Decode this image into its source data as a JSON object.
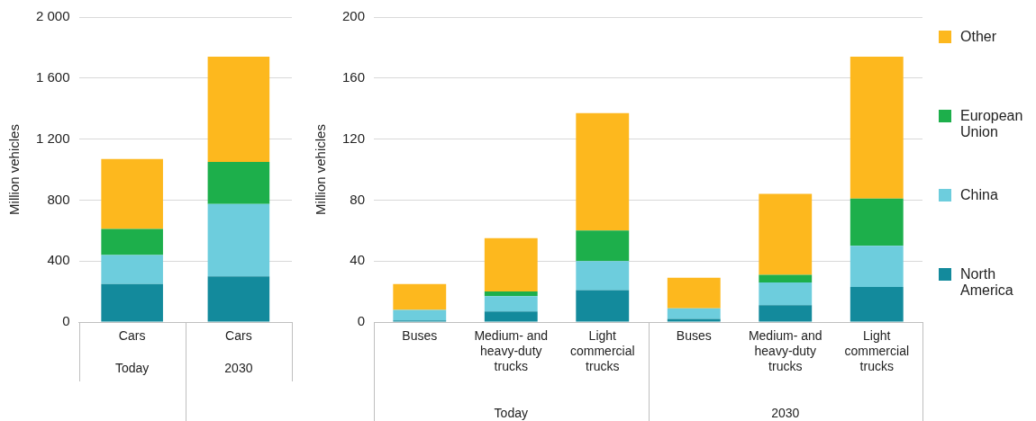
{
  "chart_data": [
    {
      "type": "bar",
      "ylabel": "Million vehicles",
      "categories": [
        "Cars",
        "Cars"
      ],
      "annotations": [
        "Today",
        "2030"
      ],
      "stacked": true,
      "grid": "y",
      "ylim": [
        0,
        2000
      ],
      "yticks": [
        0,
        400,
        800,
        {
          "value": 1200,
          "label": "1 200"
        },
        {
          "value": 1600,
          "label": "1 600"
        },
        {
          "value": 2000,
          "label": "2 000"
        }
      ],
      "series": [
        {
          "color": "#138a9c",
          "values": [
            250,
            300
          ]
        },
        {
          "color": "#6dcddd",
          "values": [
            190,
            475
          ]
        },
        {
          "color": "#1daf4b",
          "values": [
            170,
            275
          ]
        },
        {
          "color": "#fdb81e",
          "values": [
            460,
            690
          ]
        }
      ]
    },
    {
      "type": "bar",
      "ylabel": "Million vehicles",
      "categories": [
        "Buses",
        "Medium- and heavy-duty trucks",
        "Light commercial trucks",
        "Buses",
        "Medium- and heavy-duty trucks",
        "Light commercial trucks"
      ],
      "annotations": [
        "Today",
        "2030"
      ],
      "stacked": true,
      "grid": "y",
      "legend": "right",
      "ylim": [
        0,
        200
      ],
      "yticks": [
        0,
        40,
        80,
        120,
        160,
        200
      ],
      "series": [
        {
          "name": "North America",
          "color": "#138a9c",
          "values": [
            1,
            7,
            21,
            2,
            11,
            23
          ]
        },
        {
          "name": "China",
          "color": "#6dcddd",
          "values": [
            7,
            10,
            19,
            7,
            15,
            27
          ]
        },
        {
          "name": "European Union",
          "color": "#1daf4b",
          "values": [
            0,
            3,
            20,
            0,
            5,
            31
          ]
        },
        {
          "name": "Other",
          "color": "#fdb81e",
          "values": [
            17,
            35,
            77,
            20,
            53,
            93
          ]
        }
      ]
    }
  ]
}
